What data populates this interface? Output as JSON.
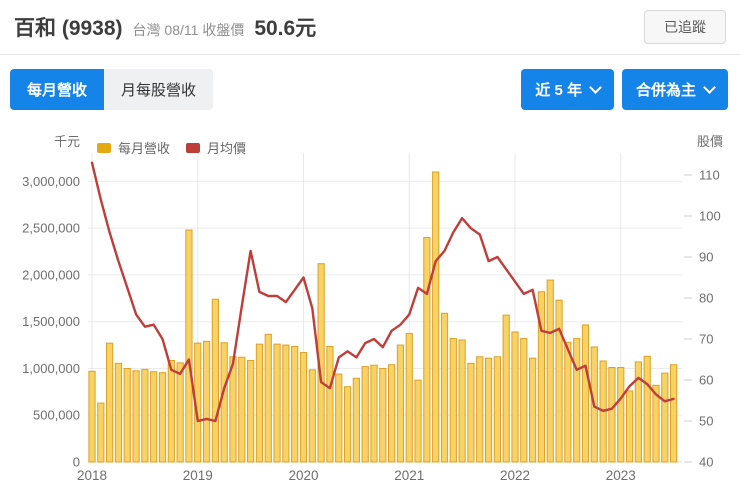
{
  "header": {
    "stock_title": "百和 (9938)",
    "market_info": "台灣 08/11 收盤價",
    "close_value": "50.6元",
    "tracked_button": "已追蹤"
  },
  "toolbar": {
    "tabs": [
      {
        "label": "每月營收",
        "active": true
      },
      {
        "label": "月每股營收",
        "active": false
      }
    ],
    "range_button": "近 5 年",
    "mode_button": "合併為主",
    "accent_color": "#1584e8"
  },
  "chart_data": {
    "type": "bar+line",
    "legend": [
      {
        "label": "每月營收",
        "color": "#e5a912",
        "series_type": "bar"
      },
      {
        "label": "月均價",
        "color": "#bf3e39",
        "series_type": "line"
      }
    ],
    "left_axis": {
      "label": "千元",
      "ticks": [
        0,
        500000,
        1000000,
        1500000,
        2000000,
        2500000,
        3000000
      ]
    },
    "right_axis": {
      "label": "股價",
      "ticks": [
        40,
        50,
        60,
        70,
        80,
        90,
        100,
        110
      ]
    },
    "x_year_labels": [
      "2018",
      "2019",
      "2020",
      "2021",
      "2022",
      "2023"
    ],
    "grid": true,
    "months": [
      "2018-01",
      "2018-02",
      "2018-03",
      "2018-04",
      "2018-05",
      "2018-06",
      "2018-07",
      "2018-08",
      "2018-09",
      "2018-10",
      "2018-11",
      "2018-12",
      "2019-01",
      "2019-02",
      "2019-03",
      "2019-04",
      "2019-05",
      "2019-06",
      "2019-07",
      "2019-08",
      "2019-09",
      "2019-10",
      "2019-11",
      "2019-12",
      "2020-01",
      "2020-02",
      "2020-03",
      "2020-04",
      "2020-05",
      "2020-06",
      "2020-07",
      "2020-08",
      "2020-09",
      "2020-10",
      "2020-11",
      "2020-12",
      "2021-01",
      "2021-02",
      "2021-03",
      "2021-04",
      "2021-05",
      "2021-06",
      "2021-07",
      "2021-08",
      "2021-09",
      "2021-10",
      "2021-11",
      "2021-12",
      "2022-01",
      "2022-02",
      "2022-03",
      "2022-04",
      "2022-05",
      "2022-06",
      "2022-07",
      "2022-08",
      "2022-09",
      "2022-10",
      "2022-11",
      "2022-12",
      "2023-01",
      "2023-02",
      "2023-03",
      "2023-04",
      "2023-05",
      "2023-06",
      "2023-07"
    ],
    "series": [
      {
        "name": "每月營收",
        "axis": "left",
        "type": "bar",
        "unit": "千元",
        "values": [
          970000,
          630000,
          1270000,
          1055000,
          1000000,
          975000,
          990000,
          965000,
          955000,
          1085000,
          1060000,
          2480000,
          1270000,
          1290000,
          1740000,
          1275000,
          1125000,
          1120000,
          1085000,
          1260000,
          1365000,
          1260000,
          1250000,
          1235000,
          1170000,
          985000,
          2120000,
          1235000,
          940000,
          805000,
          895000,
          1020000,
          1035000,
          1000000,
          1040000,
          1250000,
          1375000,
          875000,
          2400000,
          3100000,
          1590000,
          1320000,
          1305000,
          1055000,
          1125000,
          1110000,
          1125000,
          1570000,
          1390000,
          1320000,
          1110000,
          1820000,
          1945000,
          1730000,
          1280000,
          1320000,
          1465000,
          1230000,
          1080000,
          1010000,
          1010000,
          760000,
          1070000,
          1130000,
          820000,
          950000,
          1040000
        ]
      },
      {
        "name": "月均價",
        "axis": "right",
        "type": "line",
        "unit": "元",
        "values": [
          113,
          104,
          96,
          89,
          82.5,
          76,
          73,
          73.5,
          70,
          62.5,
          61.5,
          65,
          50,
          50.5,
          50,
          58,
          64,
          78,
          91.5,
          81.5,
          80.5,
          80.5,
          79,
          82,
          85,
          77.5,
          59.5,
          58,
          65.5,
          67,
          65.5,
          69,
          70,
          68,
          72,
          73.5,
          76,
          82.5,
          81,
          89,
          91.5,
          96,
          99.5,
          97,
          95.5,
          89,
          90,
          87,
          84,
          81,
          82,
          72,
          71.5,
          72.5,
          67.5,
          62.5,
          63.5,
          53.5,
          52.5,
          53,
          55.5,
          58.5,
          60.5,
          59,
          56.5,
          54.8,
          55.4
        ]
      }
    ],
    "colors": {
      "bar_fill": "#f8d264",
      "bar_stroke": "#dba125",
      "line": "#bf3e39",
      "grid": "#ececec",
      "year_grid": "#e8e8e8",
      "baseline": "#dedede",
      "tick_dash": "#cccccc",
      "axis_text": "#6e6e6e"
    }
  }
}
